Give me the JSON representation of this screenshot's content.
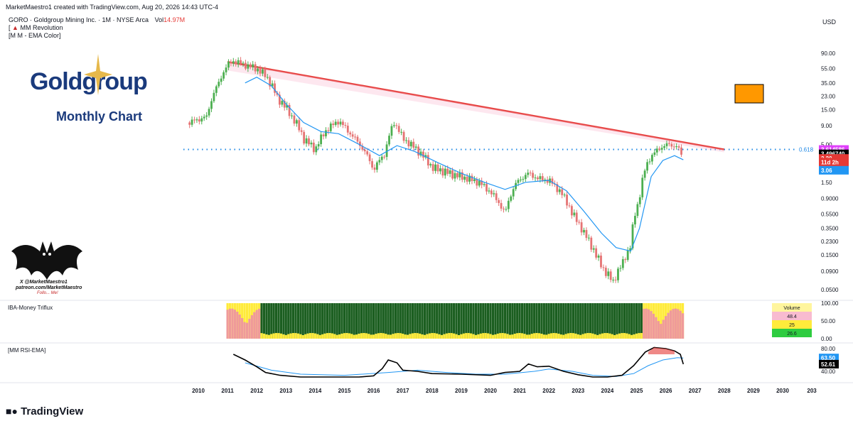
{
  "header": {
    "created_line": "MarketMaestro1 created with TradingView.com, Aug 20, 2026 14:43 UTC-4",
    "symbol_line": "GORO · Goldgroup Mining Inc. · 1M · NYSE Arca",
    "volume_label": "Vol",
    "volume_value": "14.97M",
    "indicator1": "MM Revolution",
    "indicator2": "[M M - EMA Color]",
    "currency": "USD"
  },
  "branding": {
    "logo_text": "Goldgroup",
    "chart_caption": "Monthly Chart",
    "handle_line1": "X @MarketMaestro1",
    "handle_line2": "patreon.com/MarketMaestro",
    "handle_line3": "Follo... Me!",
    "footer_logo": "TradingView"
  },
  "colors": {
    "trendline": "#e53935",
    "ema": "#2196f3",
    "up_candle": "#4caf50",
    "down_candle": "#e57373",
    "marker_orange": "#ff9800",
    "triflux_green": "#1b5e20",
    "triflux_yellow": "#ffeb3b",
    "triflux_pink": "#ef9a9a"
  },
  "chart_data": {
    "type": "candlestick",
    "title": "GORO · Goldgroup Mining Inc. · 1M · NYSE Arca",
    "y_scale": "log",
    "ylim": [
      0.04,
      120
    ],
    "x_range": [
      2009.5,
      2031.2
    ],
    "price_ticks": [
      "90.00",
      "55.00",
      "35.00",
      "23.00",
      "15.00",
      "9.00",
      "5.00",
      "1.50",
      "0.9000",
      "0.5500",
      "0.3500",
      "0.2300",
      "0.1500",
      "0.0900",
      "0.0500"
    ],
    "time_ticks": [
      "2010",
      "2011",
      "2012",
      "2013",
      "2014",
      "2015",
      "2016",
      "2017",
      "2018",
      "2019",
      "2020",
      "2021",
      "2022",
      "2023",
      "2024",
      "2025",
      "2026",
      "2027",
      "2028",
      "2029",
      "2030",
      "203"
    ],
    "price_path": [
      [
        2009.7,
        10
      ],
      [
        2010.3,
        12
      ],
      [
        2010.7,
        35
      ],
      [
        2011.0,
        62
      ],
      [
        2011.2,
        70
      ],
      [
        2011.6,
        62
      ],
      [
        2012.0,
        55
      ],
      [
        2012.3,
        44
      ],
      [
        2012.7,
        22
      ],
      [
        2013.2,
        12
      ],
      [
        2013.6,
        6
      ],
      [
        2014.0,
        4.2
      ],
      [
        2014.4,
        8
      ],
      [
        2014.8,
        10.5
      ],
      [
        2015.2,
        7
      ],
      [
        2015.6,
        4.5
      ],
      [
        2016.0,
        2.2
      ],
      [
        2016.4,
        3.8
      ],
      [
        2016.7,
        10
      ],
      [
        2017.0,
        6
      ],
      [
        2017.4,
        4.5
      ],
      [
        2018.0,
        2.4
      ],
      [
        2018.6,
        2.0
      ],
      [
        2019.2,
        1.7
      ],
      [
        2019.6,
        1.5
      ],
      [
        2020.0,
        1.1
      ],
      [
        2020.5,
        0.55
      ],
      [
        2020.9,
        1.5
      ],
      [
        2021.3,
        2.0
      ],
      [
        2021.6,
        1.7
      ],
      [
        2022.0,
        1.6
      ],
      [
        2022.4,
        1.1
      ],
      [
        2022.8,
        0.55
      ],
      [
        2023.2,
        0.3
      ],
      [
        2023.6,
        0.15
      ],
      [
        2023.9,
        0.09
      ],
      [
        2024.2,
        0.065
      ],
      [
        2024.5,
        0.11
      ],
      [
        2024.8,
        0.2
      ],
      [
        2025.1,
        0.9
      ],
      [
        2025.4,
        3.0
      ],
      [
        2025.8,
        4.5
      ],
      [
        2026.1,
        5.0
      ],
      [
        2026.4,
        4.6
      ],
      [
        2026.6,
        3.2
      ]
    ],
    "ema_path": [
      [
        2011.6,
        35
      ],
      [
        2012.0,
        42
      ],
      [
        2012.5,
        32
      ],
      [
        2013.0,
        18
      ],
      [
        2013.6,
        10
      ],
      [
        2014.2,
        7.5
      ],
      [
        2014.8,
        7
      ],
      [
        2015.5,
        5
      ],
      [
        2016.2,
        3.5
      ],
      [
        2016.8,
        4.8
      ],
      [
        2017.4,
        4
      ],
      [
        2018.2,
        2.8
      ],
      [
        2019.0,
        2
      ],
      [
        2019.8,
        1.5
      ],
      [
        2020.5,
        1.2
      ],
      [
        2021.2,
        1.5
      ],
      [
        2022.0,
        1.6
      ],
      [
        2022.6,
        1.15
      ],
      [
        2023.2,
        0.6
      ],
      [
        2023.8,
        0.3
      ],
      [
        2024.3,
        0.19
      ],
      [
        2024.8,
        0.17
      ],
      [
        2025.1,
        0.35
      ],
      [
        2025.5,
        1.8
      ],
      [
        2025.9,
        3.0
      ],
      [
        2026.3,
        3.5
      ],
      [
        2026.6,
        3.06
      ]
    ],
    "trendline": {
      "from": [
        2011.0,
        68
      ],
      "to": [
        2028.0,
        4.25
      ]
    },
    "fib_level": {
      "label": "0.618",
      "price": 4.25
    },
    "price_labels": [
      {
        "text": "3.614586",
        "price": 4.25,
        "color": "#e040fb"
      },
      {
        "text": "3.496740",
        "price": 3.7,
        "color": "#000000"
      },
      {
        "text": "3.20",
        "price": 3.2,
        "color": "#e53935"
      },
      {
        "text": "11d 2h",
        "price": 2.85,
        "color": "#e53935"
      },
      {
        "text": "3.06",
        "price": 2.2,
        "color": "#2196f3"
      }
    ],
    "triflux": {
      "title": "IBA-Money Triflux",
      "ylim": [
        0,
        100
      ],
      "ticks": [
        "100.00",
        "50.00",
        "0.00"
      ],
      "legend": [
        {
          "text": "Volume",
          "color": "#fff59d"
        },
        {
          "text": "48.4",
          "color": "#f8bbd0"
        },
        {
          "text": "25",
          "color": "#ffeb3b"
        },
        {
          "text": "26.6",
          "color": "#2ecc40"
        }
      ]
    },
    "rsi": {
      "title": "[MM RSI-EMA]",
      "ylim": [
        25,
        85
      ],
      "ticks": [
        "80.00",
        "40.00"
      ],
      "value_labels": [
        {
          "text": "63.50",
          "value": 63.5,
          "color": "#2196f3"
        },
        {
          "text": "52.61",
          "value": 52.61,
          "color": "#000000"
        }
      ],
      "rsi_path": [
        [
          2011.2,
          70
        ],
        [
          2011.6,
          60
        ],
        [
          2012.0,
          48
        ],
        [
          2012.3,
          38
        ],
        [
          2012.8,
          33
        ],
        [
          2013.5,
          30
        ],
        [
          2014.5,
          30
        ],
        [
          2015.5,
          30
        ],
        [
          2016.0,
          32
        ],
        [
          2016.3,
          45
        ],
        [
          2016.5,
          60
        ],
        [
          2016.8,
          55
        ],
        [
          2017.0,
          42
        ],
        [
          2017.5,
          40
        ],
        [
          2018.0,
          36
        ],
        [
          2019.0,
          35
        ],
        [
          2020.0,
          33
        ],
        [
          2020.5,
          38
        ],
        [
          2021.0,
          40
        ],
        [
          2021.3,
          53
        ],
        [
          2021.6,
          48
        ],
        [
          2022.0,
          49
        ],
        [
          2022.5,
          40
        ],
        [
          2023.0,
          34
        ],
        [
          2023.5,
          30
        ],
        [
          2024.0,
          30
        ],
        [
          2024.5,
          33
        ],
        [
          2024.9,
          50
        ],
        [
          2025.3,
          74
        ],
        [
          2025.6,
          82
        ],
        [
          2026.0,
          80
        ],
        [
          2026.3,
          76
        ],
        [
          2026.5,
          70
        ],
        [
          2026.6,
          52.61
        ]
      ],
      "ema_path": [
        [
          2011.6,
          55
        ],
        [
          2012.5,
          42
        ],
        [
          2013.5,
          35
        ],
        [
          2015.0,
          33
        ],
        [
          2016.5,
          38
        ],
        [
          2017.5,
          42
        ],
        [
          2018.5,
          38
        ],
        [
          2019.5,
          35
        ],
        [
          2020.5,
          35
        ],
        [
          2021.5,
          40
        ],
        [
          2022.0,
          44
        ],
        [
          2022.8,
          40
        ],
        [
          2023.5,
          33
        ],
        [
          2024.3,
          31
        ],
        [
          2024.9,
          36
        ],
        [
          2025.4,
          50
        ],
        [
          2025.9,
          60
        ],
        [
          2026.4,
          64
        ],
        [
          2026.6,
          63.5
        ]
      ]
    }
  }
}
